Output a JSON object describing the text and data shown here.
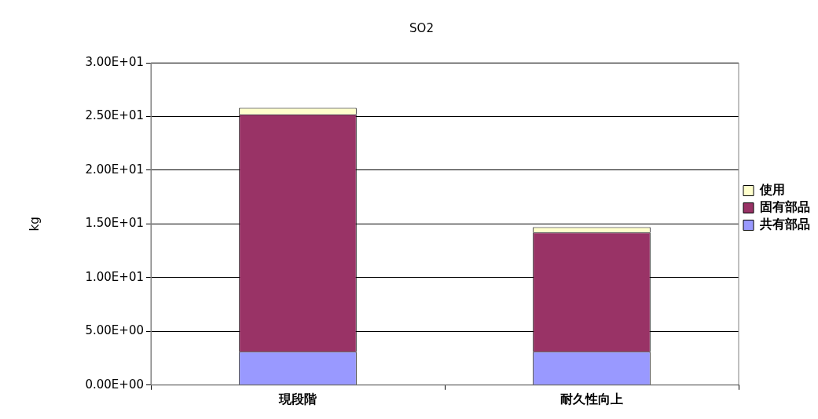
{
  "chart_data": {
    "type": "bar",
    "title": "SO2",
    "ylabel": "kg",
    "categories": [
      "現段階",
      "耐久性向上"
    ],
    "stacked": true,
    "legend": "right",
    "grid": "y",
    "series": [
      {
        "name": "共有部品",
        "color": "#9999ff",
        "values": [
          3.1,
          3.1
        ]
      },
      {
        "name": "固有部品",
        "color": "#993366",
        "values": [
          22.1,
          11.1
        ]
      },
      {
        "name": "使用",
        "color": "#ffffcc",
        "values": [
          0.6,
          0.5
        ]
      }
    ],
    "ylim": [
      0,
      30
    ],
    "yticks": [
      {
        "value": 0,
        "label": "0.00E+00"
      },
      {
        "value": 5,
        "label": "5.00E+00"
      },
      {
        "value": 10,
        "label": "1.00E+01"
      },
      {
        "value": 15,
        "label": "1.50E+01"
      },
      {
        "value": 20,
        "label": "2.00E+01"
      },
      {
        "value": 25,
        "label": "2.50E+01"
      },
      {
        "value": 30,
        "label": "3.00E+01"
      }
    ]
  }
}
